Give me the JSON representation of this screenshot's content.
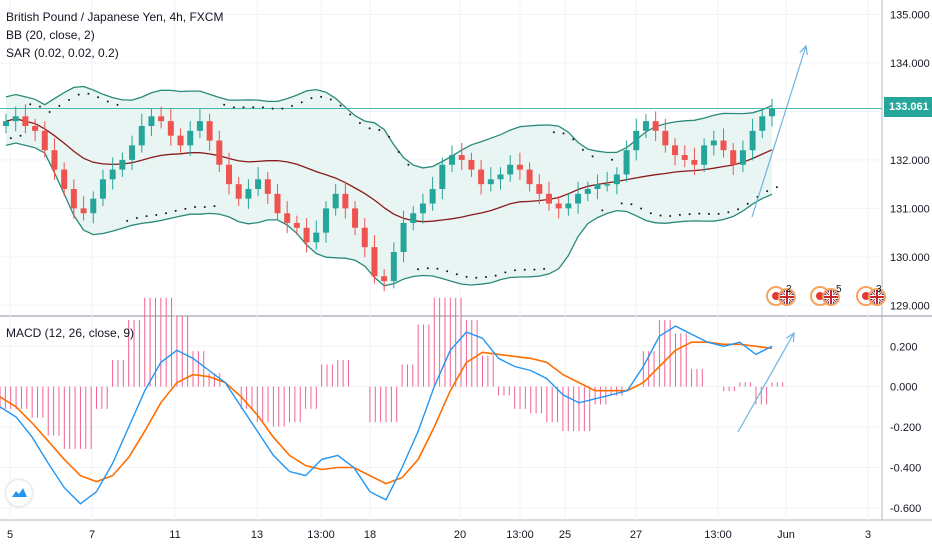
{
  "legend": {
    "main": "British Pound / Japanese Yen, 4h, FXCM",
    "bb": "BB (20, close, 2)",
    "sar": "SAR (0.02, 0.02, 0.2)",
    "macd": "MACD (12, 26, close, 9)"
  },
  "last_price_label": "133.061",
  "events": [
    {
      "count": "2"
    },
    {
      "count": "5"
    },
    {
      "count": "3"
    }
  ],
  "colors": {
    "up": "#26a69a",
    "down": "#ef5350",
    "basis": "#8b1a1a",
    "band": "#2a8a7a",
    "band_fill": "#e8f5f3",
    "macd": "#2196f3",
    "signal": "#ff6d00",
    "hist": "#f06292",
    "arrow": "#6fb3e0"
  },
  "chart_data": [
    {
      "type": "candlestick",
      "title": "British Pound / Japanese Yen, 4h, FXCM",
      "y_axis_ticks": [
        "135.000",
        "134.000",
        "133.000",
        "132.000",
        "131.000",
        "130.000",
        "129.000"
      ],
      "ylim": [
        128.8,
        135.3
      ],
      "x_axis_ticks": [
        "5",
        "7",
        "11",
        "13",
        "13:00",
        "18",
        "20",
        "13:00",
        "25",
        "27",
        "13:00",
        "Jun",
        "3"
      ],
      "close_series": [
        132.8,
        132.9,
        132.7,
        132.6,
        132.2,
        131.8,
        131.4,
        131.0,
        130.9,
        131.2,
        131.6,
        131.8,
        132.0,
        132.3,
        132.7,
        132.9,
        132.8,
        132.5,
        132.3,
        132.6,
        132.8,
        132.4,
        131.9,
        131.5,
        131.2,
        131.4,
        131.6,
        131.3,
        130.9,
        130.7,
        130.6,
        130.3,
        130.5,
        131.0,
        131.3,
        131.0,
        130.6,
        130.2,
        129.6,
        129.5,
        130.1,
        130.7,
        130.9,
        131.1,
        131.4,
        131.9,
        132.1,
        132.0,
        131.8,
        131.5,
        131.6,
        131.7,
        131.9,
        131.8,
        131.5,
        131.3,
        131.1,
        131.0,
        131.1,
        131.3,
        131.4,
        131.5,
        131.5,
        131.7,
        132.2,
        132.6,
        132.8,
        132.6,
        132.3,
        132.1,
        132.0,
        131.9,
        132.3,
        132.4,
        132.2,
        131.9,
        132.2,
        132.6,
        132.9,
        133.06
      ],
      "series": [
        {
          "name": "BB (20, close, 2)"
        },
        {
          "name": "SAR (0.02, 0.02, 0.2)"
        }
      ]
    },
    {
      "type": "line",
      "title": "MACD (12, 26, close, 9)",
      "y_axis_ticks": [
        "0.200",
        "0.000",
        "-0.200",
        "-0.400",
        "-0.600"
      ],
      "ylim": [
        -0.66,
        0.34
      ],
      "macd_series": [
        -0.1,
        -0.15,
        -0.25,
        -0.38,
        -0.5,
        -0.58,
        -0.52,
        -0.38,
        -0.2,
        -0.02,
        0.12,
        0.18,
        0.14,
        0.08,
        0.02,
        -0.1,
        -0.22,
        -0.34,
        -0.42,
        -0.44,
        -0.36,
        -0.34,
        -0.4,
        -0.52,
        -0.56,
        -0.4,
        -0.22,
        0.0,
        0.18,
        0.27,
        0.24,
        0.14,
        0.1,
        0.08,
        0.04,
        -0.04,
        -0.08,
        -0.06,
        -0.04,
        -0.02,
        0.1,
        0.25,
        0.3,
        0.26,
        0.22,
        0.2,
        0.22,
        0.16,
        0.2
      ],
      "signal_series": [
        -0.05,
        -0.1,
        -0.18,
        -0.27,
        -0.36,
        -0.44,
        -0.47,
        -0.44,
        -0.35,
        -0.22,
        -0.08,
        0.02,
        0.06,
        0.05,
        0.02,
        -0.05,
        -0.14,
        -0.25,
        -0.34,
        -0.39,
        -0.41,
        -0.4,
        -0.4,
        -0.44,
        -0.48,
        -0.45,
        -0.36,
        -0.2,
        -0.02,
        0.12,
        0.17,
        0.16,
        0.15,
        0.14,
        0.12,
        0.06,
        0.02,
        -0.02,
        -0.02,
        -0.02,
        0.02,
        0.1,
        0.18,
        0.22,
        0.22,
        0.21,
        0.21,
        0.2,
        0.19
      ],
      "series": [
        {
          "name": "MACD"
        },
        {
          "name": "Signal"
        },
        {
          "name": "Histogram"
        }
      ]
    }
  ]
}
